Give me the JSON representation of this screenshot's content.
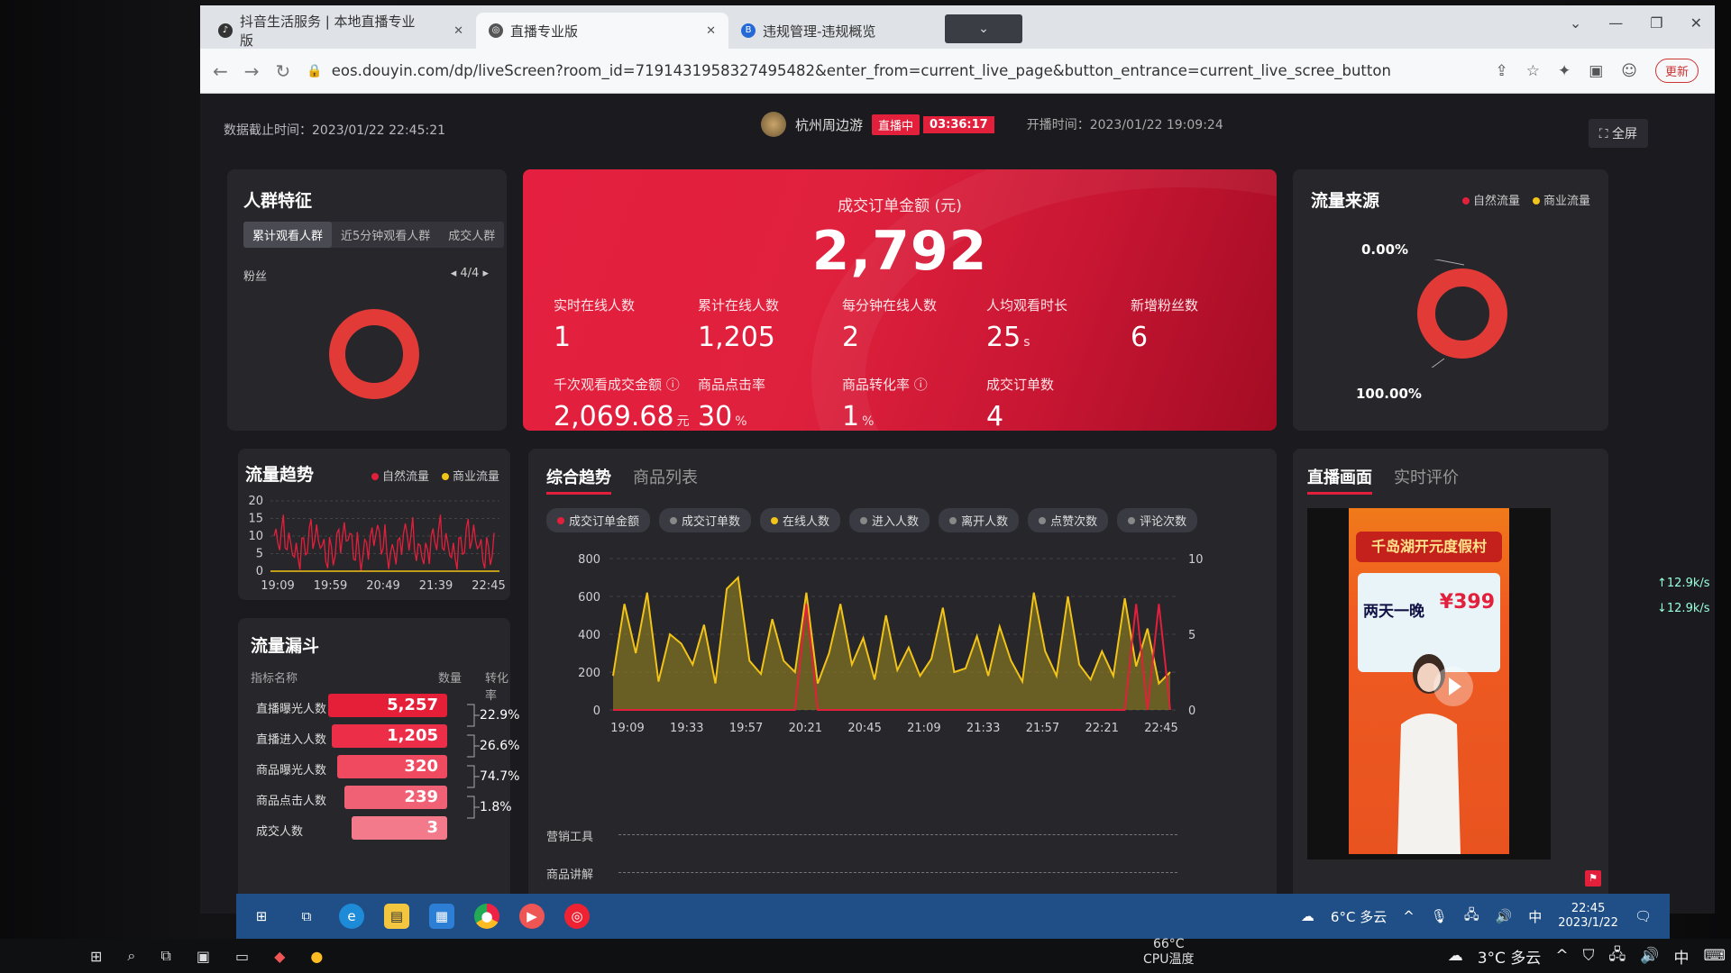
{
  "browser": {
    "tabs": [
      {
        "label": "抖音生活服务 | 本地直播专业版",
        "icon": "douyin-icon"
      },
      {
        "label": "直播专业版",
        "icon": "globe-icon"
      },
      {
        "label": "违规管理-违规概览",
        "icon": "b-icon"
      }
    ],
    "tab_dropdown": "⌄",
    "url": "eos.douyin.com/dp/liveScreen?room_id=7191431958327495482&enter_from=current_live_page&button_entrance=current_live_scree_button",
    "update_label": "更新"
  },
  "header": {
    "data_time": "数据截止时间：2023/01/22 22:45:21",
    "anchor_name": "杭州周边游",
    "live_label": "直播中",
    "live_duration": "03:36:17",
    "start_time": "开播时间：2023/01/22 19:09:24",
    "fullscreen": "全屏"
  },
  "crowd": {
    "title": "人群特征",
    "tabs": [
      "累计观看人群",
      "近5分钟观看人群",
      "成交人群"
    ],
    "sub_label": "粉丝",
    "pager": "4/4"
  },
  "hero": {
    "label": "成交订单金额 (元)",
    "value": "2,792",
    "kpis": [
      {
        "label": "实时在线人数",
        "value": "1",
        "unit": ""
      },
      {
        "label": "累计在线人数",
        "value": "1,205",
        "unit": ""
      },
      {
        "label": "每分钟在线人数",
        "value": "2",
        "unit": ""
      },
      {
        "label": "人均观看时长",
        "value": "25",
        "unit": "s"
      },
      {
        "label": "新增粉丝数",
        "value": "6",
        "unit": ""
      },
      {
        "label": "千次观看成交金额",
        "value": "2,069.68",
        "unit": "元"
      },
      {
        "label": "商品点击率",
        "value": "30",
        "unit": "%"
      },
      {
        "label": "商品转化率",
        "value": "1",
        "unit": "%"
      },
      {
        "label": "成交订单数",
        "value": "4",
        "unit": ""
      }
    ]
  },
  "source": {
    "title": "流量来源",
    "legend": [
      "自然流量",
      "商业流量"
    ],
    "pct_top": "0.00%",
    "pct_bottom": "100.00%",
    "natural_share": 1.0
  },
  "trend": {
    "title": "流量趋势",
    "legend": [
      "自然流量",
      "商业流量"
    ],
    "y_ticks": [
      "20",
      "15",
      "10",
      "5",
      "0"
    ],
    "x_ticks": [
      "19:09",
      "19:59",
      "20:49",
      "21:39",
      "22:45"
    ]
  },
  "funnel": {
    "title": "流量漏斗",
    "headers": [
      "指标名称",
      "数量",
      "转化率"
    ],
    "rows": [
      {
        "label": "直播曝光人数",
        "value": "5,257"
      },
      {
        "label": "直播进入人数",
        "value": "1,205"
      },
      {
        "label": "商品曝光人数",
        "value": "320"
      },
      {
        "label": "商品点击人数",
        "value": "239"
      },
      {
        "label": "成交人数",
        "value": "3"
      }
    ],
    "rates": [
      "22.9%",
      "26.6%",
      "74.7%",
      "1.8%"
    ]
  },
  "overview": {
    "tabs": [
      "综合趋势",
      "商品列表"
    ],
    "pills": [
      {
        "label": "成交订单金额",
        "color": "#e2203c"
      },
      {
        "label": "成交订单数",
        "color": "#888888"
      },
      {
        "label": "在线人数",
        "color": "#f2c318"
      },
      {
        "label": "进入人数",
        "color": "#888888"
      },
      {
        "label": "离开人数",
        "color": "#888888"
      },
      {
        "label": "点赞次数",
        "color": "#888888"
      },
      {
        "label": "评论次数",
        "color": "#888888"
      }
    ],
    "y_left": [
      "800",
      "600",
      "400",
      "200",
      "0"
    ],
    "y_right": [
      "10",
      "5",
      "0"
    ],
    "x_ticks": [
      "19:09",
      "19:33",
      "19:57",
      "20:21",
      "20:45",
      "21:09",
      "21:33",
      "21:57",
      "22:21",
      "22:45"
    ],
    "rows": [
      "营销工具",
      "商品讲解"
    ]
  },
  "chart_data": {
    "type": "line",
    "x_range": [
      "19:09",
      "22:45"
    ],
    "x_ticks": [
      "19:09",
      "19:33",
      "19:57",
      "20:21",
      "20:45",
      "21:09",
      "21:33",
      "21:57",
      "22:21",
      "22:45"
    ],
    "ylim_left": [
      0,
      800
    ],
    "ylim_right": [
      0,
      10
    ],
    "series": [
      {
        "name": "在线人数",
        "axis": "left",
        "values": [
          180,
          560,
          300,
          620,
          150,
          400,
          350,
          240,
          450,
          140,
          640,
          700,
          260,
          190,
          480,
          260,
          200,
          620,
          140,
          300,
          560,
          240,
          380,
          160,
          500,
          210,
          330,
          180,
          270,
          540,
          200,
          220,
          390,
          180,
          440,
          260,
          150,
          620,
          310,
          180,
          600,
          240,
          160,
          310,
          180,
          590,
          230,
          430,
          140,
          200
        ]
      },
      {
        "name": "成交订单金额",
        "axis": "right",
        "values": [
          0,
          0,
          0,
          0,
          0,
          0,
          0,
          0,
          0,
          0,
          0,
          0,
          0,
          0,
          0,
          0,
          0,
          7,
          0,
          0,
          0,
          0,
          0,
          0,
          0,
          0,
          0,
          0,
          0,
          0,
          0,
          0,
          0,
          0,
          0,
          0,
          0,
          0,
          0,
          0,
          0,
          0,
          0,
          0,
          0,
          0,
          7,
          0,
          7,
          0
        ]
      }
    ]
  },
  "live_view": {
    "tabs": [
      "直播画面",
      "实时评价"
    ],
    "poster_title": "千岛湖开元度假村",
    "poster_sub": "两天一晚",
    "poster_price": "¥399"
  },
  "taskbar": {
    "weather": "6°C 多云",
    "ime": "中",
    "time": "22:45",
    "date": "2023/1/22",
    "cpu_temp": "66°C",
    "cpu_label": "CPU温度",
    "outer_weather": "3°C 多云",
    "outer_ime": "中",
    "net_up": "↑12.9k/s",
    "net_down": "↓12.9k/s"
  }
}
